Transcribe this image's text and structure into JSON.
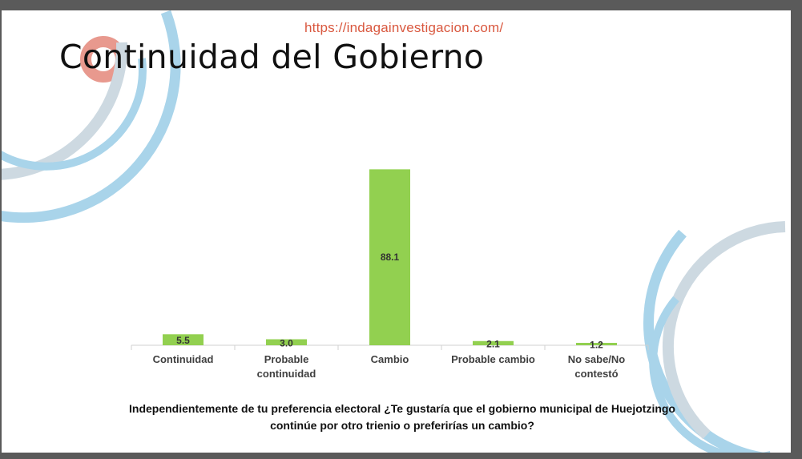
{
  "header": {
    "url": "https://indagainvestigacion.com/",
    "title": "Continuidad del Gobierno"
  },
  "colors": {
    "bar": "#92d050",
    "accent_arc_salmon": "#e8998e",
    "accent_arc_blue": "#9fd0e8",
    "accent_arc_gray": "#c9d6df"
  },
  "chart_data": {
    "type": "bar",
    "categories": [
      "Continuidad",
      "Probable continuidad",
      "Cambio",
      "Probable cambio",
      "No sabe/No contestó"
    ],
    "category_lines": [
      [
        "Continuidad"
      ],
      [
        "Probable",
        "continuidad"
      ],
      [
        "Cambio"
      ],
      [
        "Probable cambio"
      ],
      [
        "No sabe/No",
        "contestó"
      ]
    ],
    "values": [
      5.5,
      3.0,
      88.1,
      2.1,
      1.2
    ],
    "value_labels": [
      "5.5",
      "3.0",
      "88.1",
      "2.1",
      "1.2"
    ],
    "ylim": [
      0,
      100
    ],
    "legend": "none",
    "grid": false
  },
  "question": "Independientemente de tu preferencia electoral ¿Te gustaría que el gobierno municipal de Huejotzingo continúe por otro trienio o preferirías un cambio?"
}
